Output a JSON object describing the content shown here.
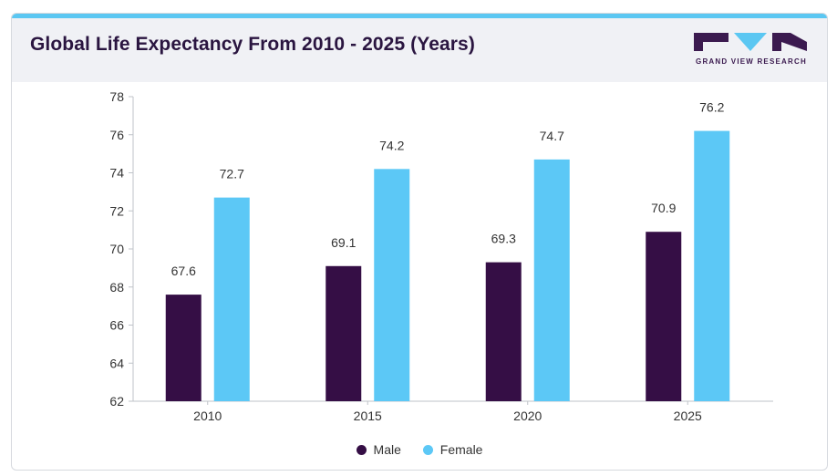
{
  "header": {
    "title": "Global Life Expectancy From 2010 - 2025 (Years)",
    "logo_text": "GRAND VIEW RESEARCH"
  },
  "colors": {
    "male": "#350e45",
    "female": "#5cc8f6",
    "axis": "#bfc3c9",
    "text": "#333333"
  },
  "chart_data": {
    "type": "bar",
    "title": "Global Life Expectancy From 2010 - 2025 (Years)",
    "categories": [
      "2010",
      "2015",
      "2020",
      "2025"
    ],
    "series": [
      {
        "name": "Male",
        "values": [
          67.6,
          69.1,
          69.3,
          70.9
        ]
      },
      {
        "name": "Female",
        "values": [
          72.7,
          74.2,
          74.7,
          76.2
        ]
      }
    ],
    "ylim": [
      62,
      78
    ],
    "yticks": [
      "62",
      "64",
      "66",
      "68",
      "70",
      "72",
      "74",
      "76",
      "78"
    ],
    "grid": false,
    "legend_position": "bottom"
  }
}
